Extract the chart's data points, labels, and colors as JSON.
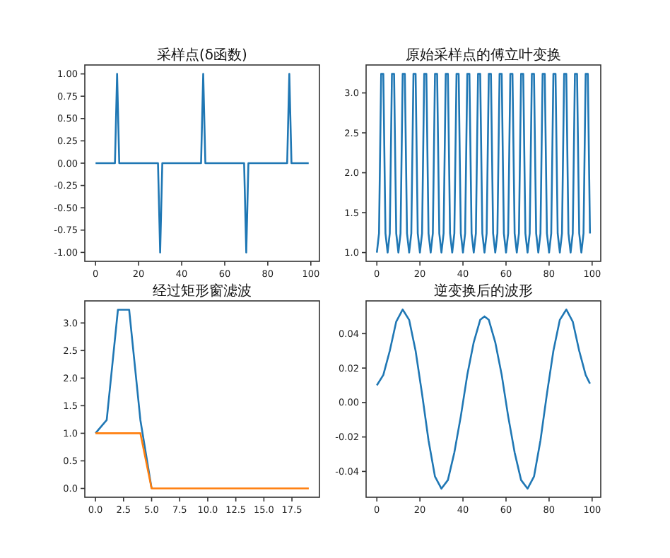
{
  "chart_data": [
    {
      "type": "line",
      "title": "采样点(δ函数)",
      "xlim": [
        -5,
        104
      ],
      "ylim": [
        -1.1,
        1.1
      ],
      "xticks": [
        0,
        20,
        40,
        60,
        80,
        100
      ],
      "yticks": [
        {
          "value": -1,
          "label": "-1.00"
        },
        {
          "value": -0.75,
          "label": "-0.75"
        },
        {
          "value": -0.5,
          "label": "-0.50"
        },
        {
          "value": -0.25,
          "label": "-0.25"
        },
        {
          "value": 0,
          "label": "0.00"
        },
        {
          "value": 0.25,
          "label": "0.25"
        },
        {
          "value": 0.5,
          "label": "0.50"
        },
        {
          "value": 0.75,
          "label": "0.75"
        },
        {
          "value": 1,
          "label": "1.00"
        }
      ],
      "series": [
        {
          "color": "#1f77b4",
          "x": [
            0,
            9,
            10,
            11,
            29,
            30,
            31,
            49,
            50,
            51,
            69,
            70,
            71,
            89,
            90,
            91,
            99
          ],
          "values": [
            0,
            0,
            1,
            0,
            0,
            -1,
            0,
            0,
            1,
            0,
            0,
            -1,
            0,
            0,
            1,
            0,
            0
          ]
        }
      ]
    },
    {
      "type": "line",
      "title": "原始采样点的傅立叶变换",
      "xlim": [
        -5,
        104
      ],
      "ylim": [
        0.89,
        3.35
      ],
      "xticks": [
        0,
        20,
        40,
        60,
        80,
        100
      ],
      "yticks": [
        {
          "value": 1,
          "label": "1.0"
        },
        {
          "value": 1.5,
          "label": "1.5"
        },
        {
          "value": 2,
          "label": "2.0"
        },
        {
          "value": 2.5,
          "label": "2.5"
        },
        {
          "value": 3,
          "label": "3.0"
        }
      ],
      "series": [
        {
          "color": "#1f77b4",
          "x": [
            0,
            1,
            2,
            3,
            4,
            5,
            6,
            7,
            8,
            9,
            10,
            11,
            12,
            13,
            14,
            15,
            16,
            17,
            18,
            19,
            20,
            21,
            22,
            23,
            24,
            25,
            26,
            27,
            28,
            29,
            30,
            31,
            32,
            33,
            34,
            35,
            36,
            37,
            38,
            39,
            40,
            41,
            42,
            43,
            44,
            45,
            46,
            47,
            48,
            49,
            50,
            51,
            52,
            53,
            54,
            55,
            56,
            57,
            58,
            59,
            60,
            61,
            62,
            63,
            64,
            65,
            66,
            67,
            68,
            69,
            70,
            71,
            72,
            73,
            74,
            75,
            76,
            77,
            78,
            79,
            80,
            81,
            82,
            83,
            84,
            85,
            86,
            87,
            88,
            89,
            90,
            91,
            92,
            93,
            94,
            95,
            96,
            97,
            98,
            99
          ],
          "values": [
            1,
            1.24,
            3.24,
            3.24,
            1.24,
            1,
            1.24,
            3.24,
            3.24,
            1.24,
            1,
            1.24,
            3.24,
            3.24,
            1.24,
            1,
            1.24,
            3.24,
            3.24,
            1.24,
            1,
            1.24,
            3.24,
            3.24,
            1.24,
            1,
            1.24,
            3.24,
            3.24,
            1.24,
            1,
            1.24,
            3.24,
            3.24,
            1.24,
            1,
            1.24,
            3.24,
            3.24,
            1.24,
            1,
            1.24,
            3.24,
            3.24,
            1.24,
            1,
            1.24,
            3.24,
            3.24,
            1.24,
            1,
            1.24,
            3.24,
            3.24,
            1.24,
            1,
            1.24,
            3.24,
            3.24,
            1.24,
            1,
            1.24,
            3.24,
            3.24,
            1.24,
            1,
            1.24,
            3.24,
            3.24,
            1.24,
            1,
            1.24,
            3.24,
            3.24,
            1.24,
            1,
            1.24,
            3.24,
            3.24,
            1.24,
            1,
            1.24,
            3.24,
            3.24,
            1.24,
            1,
            1.24,
            3.24,
            3.24,
            1.24,
            1,
            1.24,
            3.24,
            3.24,
            1.24,
            1,
            1.24,
            3.24,
            3.24,
            1.24
          ]
        }
      ]
    },
    {
      "type": "line",
      "title": "经过矩形窗滤波",
      "xlim": [
        -0.95,
        19.95
      ],
      "ylim": [
        -0.16,
        3.4
      ],
      "xticks": [
        {
          "value": 0,
          "label": "0.0"
        },
        2.5,
        {
          "value": 5,
          "label": "5.0"
        },
        7.5,
        {
          "value": 10,
          "label": "10.0"
        },
        12.5,
        {
          "value": 15,
          "label": "15.0"
        },
        17.5
      ],
      "yticks": [
        {
          "value": 0,
          "label": "0.0"
        },
        0.5,
        {
          "value": 1,
          "label": "1.0"
        },
        1.5,
        {
          "value": 2,
          "label": "2.0"
        },
        2.5,
        {
          "value": 3,
          "label": "3.0"
        }
      ],
      "series": [
        {
          "color": "#1f77b4",
          "x": [
            0,
            1,
            2,
            3,
            4,
            5
          ],
          "values": [
            1,
            1.24,
            3.24,
            3.24,
            1.24,
            0
          ]
        },
        {
          "color": "#ff7f0e",
          "x": [
            0,
            1,
            2,
            3,
            4,
            5,
            6,
            7,
            8,
            9,
            10,
            11,
            12,
            13,
            14,
            15,
            16,
            17,
            18,
            19
          ],
          "values": [
            1,
            1,
            1,
            1,
            1,
            0,
            0,
            0,
            0,
            0,
            0,
            0,
            0,
            0,
            0,
            0,
            0,
            0,
            0,
            0
          ]
        }
      ]
    },
    {
      "type": "line",
      "title": "逆变换后的波形",
      "xlim": [
        -5,
        104
      ],
      "ylim": [
        -0.055,
        0.059
      ],
      "xticks": [
        0,
        20,
        40,
        60,
        80,
        100
      ],
      "yticks": [
        -0.04,
        -0.02,
        {
          "value": 0,
          "label": "0.00"
        },
        0.02,
        0.04
      ],
      "series": [
        {
          "color": "#1f77b4",
          "x": [
            0,
            3,
            6,
            9,
            12,
            15,
            18,
            21,
            24,
            27,
            30,
            33,
            36,
            39,
            42,
            45,
            48,
            50,
            52,
            55,
            58,
            61,
            64,
            67,
            70,
            73,
            76,
            79,
            82,
            85,
            88,
            91,
            94,
            97,
            99
          ],
          "values": [
            0.01,
            0.016,
            0.03,
            0.047,
            0.054,
            0.048,
            0.03,
            0.005,
            -0.022,
            -0.043,
            -0.05,
            -0.045,
            -0.029,
            -0.008,
            0.016,
            0.035,
            0.048,
            0.05,
            0.048,
            0.035,
            0.016,
            -0.008,
            -0.029,
            -0.045,
            -0.05,
            -0.043,
            -0.022,
            0.005,
            0.03,
            0.048,
            0.054,
            0.047,
            0.03,
            0.016,
            0.011
          ]
        }
      ]
    }
  ]
}
